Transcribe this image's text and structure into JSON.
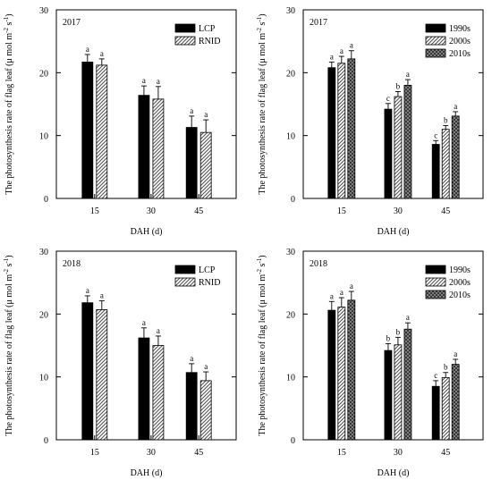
{
  "figure": {
    "ylabel": "The photosynthesis rate of flag leaf  (μ mol m",
    "ylabel_unit_tail": " s",
    "xlabel": "DAH (d)"
  },
  "chart_data": [
    {
      "type": "bar",
      "panel_label": "2017",
      "xlabel": "DAH (d)",
      "ylabel": "The photosynthesis rate of flag leaf (μ mol m-2 s-1)",
      "categories": [
        "15",
        "30",
        "45"
      ],
      "ylim": [
        0,
        30
      ],
      "yticks": [
        "0",
        "10",
        "20",
        "30"
      ],
      "legend_position": "top-right",
      "series": [
        {
          "name": "LCP",
          "pattern": "solid",
          "values": [
            21.7,
            16.4,
            11.3
          ],
          "errors": [
            1.2,
            1.5,
            1.8
          ],
          "letters": [
            "a",
            "a",
            "a"
          ]
        },
        {
          "name": "RNID",
          "pattern": "hatch",
          "values": [
            21.2,
            15.8,
            10.5
          ],
          "errors": [
            1.0,
            2.0,
            2.0
          ],
          "letters": [
            "a",
            "a",
            "a"
          ]
        }
      ]
    },
    {
      "type": "bar",
      "panel_label": "2017",
      "xlabel": "DAH (d)",
      "ylabel": "The photosynthesis rate of flag leaf (μ mol m-2 s-1)",
      "categories": [
        "15",
        "30",
        "45"
      ],
      "ylim": [
        0,
        30
      ],
      "yticks": [
        "0",
        "10",
        "20",
        "30"
      ],
      "legend_position": "top-right",
      "series": [
        {
          "name": "1990s",
          "pattern": "solid",
          "values": [
            20.8,
            14.2,
            8.6
          ],
          "errors": [
            0.9,
            0.9,
            0.6
          ],
          "letters": [
            "a",
            "c",
            "c"
          ]
        },
        {
          "name": "2000s",
          "pattern": "hatch",
          "values": [
            21.5,
            16.2,
            11.0
          ],
          "errors": [
            1.1,
            0.8,
            0.6
          ],
          "letters": [
            "a",
            "b",
            "b"
          ]
        },
        {
          "name": "2010s",
          "pattern": "cross",
          "values": [
            22.2,
            18.0,
            13.1
          ],
          "errors": [
            1.3,
            0.9,
            0.7
          ],
          "letters": [
            "a",
            "a",
            "a"
          ]
        }
      ]
    },
    {
      "type": "bar",
      "panel_label": "2018",
      "xlabel": "DAH (d)",
      "ylabel": "The photosynthesis rate of flag leaf (μ mol m-2 s-1)",
      "categories": [
        "15",
        "30",
        "45"
      ],
      "ylim": [
        0,
        30
      ],
      "yticks": [
        "0",
        "10",
        "20",
        "30"
      ],
      "legend_position": "top-right",
      "series": [
        {
          "name": "LCP",
          "pattern": "solid",
          "values": [
            21.8,
            16.2,
            10.7
          ],
          "errors": [
            1.1,
            1.6,
            1.4
          ],
          "letters": [
            "a",
            "a",
            "a"
          ]
        },
        {
          "name": "RNID",
          "pattern": "hatch",
          "values": [
            20.7,
            15.0,
            9.4
          ],
          "errors": [
            1.4,
            1.5,
            1.4
          ],
          "letters": [
            "a",
            "a",
            "a"
          ]
        }
      ]
    },
    {
      "type": "bar",
      "panel_label": "2018",
      "xlabel": "DAH (d)",
      "ylabel": "The photosynthesis rate of flag leaf (μ mol m-2 s-1)",
      "categories": [
        "15",
        "30",
        "45"
      ],
      "ylim": [
        0,
        30
      ],
      "yticks": [
        "0",
        "10",
        "20",
        "30"
      ],
      "legend_position": "top-right",
      "series": [
        {
          "name": "1990s",
          "pattern": "solid",
          "values": [
            20.6,
            14.2,
            8.5
          ],
          "errors": [
            1.4,
            1.1,
            0.9
          ],
          "letters": [
            "a",
            "b",
            "c"
          ]
        },
        {
          "name": "2000s",
          "pattern": "hatch",
          "values": [
            21.1,
            15.1,
            9.9
          ],
          "errors": [
            1.5,
            1.2,
            0.8
          ],
          "letters": [
            "a",
            "b",
            "b"
          ]
        },
        {
          "name": "2010s",
          "pattern": "cross",
          "values": [
            22.2,
            17.6,
            12.0
          ],
          "errors": [
            1.4,
            1.0,
            0.8
          ],
          "letters": [
            "a",
            "a",
            "a"
          ]
        }
      ]
    }
  ]
}
